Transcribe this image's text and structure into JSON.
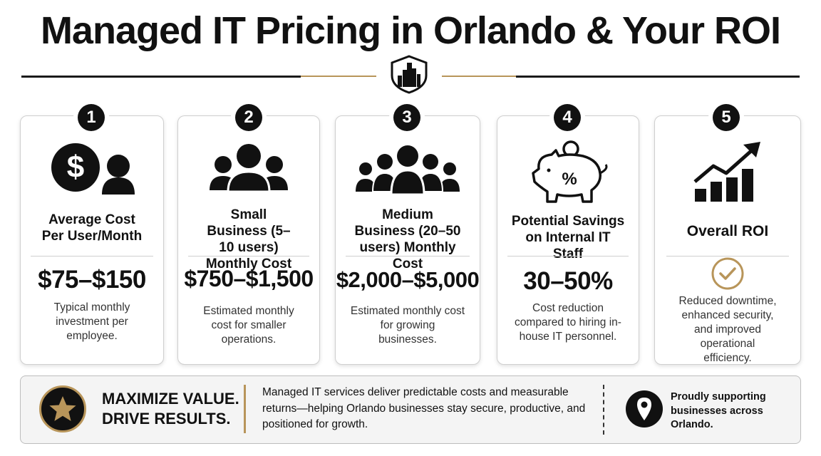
{
  "header": {
    "title": "Managed IT Pricing in Orlando & Your ROI"
  },
  "colors": {
    "accent_gold": "#b8955a",
    "dark": "#111111"
  },
  "cards": [
    {
      "number": "1",
      "icon": "dollar-user-icon",
      "heading": "Average Cost Per User/Month",
      "value": "$75–$150",
      "description": "Typical monthly investment per employee."
    },
    {
      "number": "2",
      "icon": "small-group-icon",
      "heading": "Small Business (5–10 users) Monthly Cost",
      "value": "$750–$1,500",
      "description": "Estimated monthly cost for smaller operations."
    },
    {
      "number": "3",
      "icon": "large-group-icon",
      "heading": "Medium Business (20–50 users) Monthly Cost",
      "value": "$2,000–$5,000",
      "description": "Estimated monthly cost for growing businesses."
    },
    {
      "number": "4",
      "icon": "piggy-bank-percent-icon",
      "heading": "Potential Savings on Internal IT Staff",
      "value": "30–50%",
      "description": "Cost reduction compared to hiring in-house IT personnel."
    },
    {
      "number": "5",
      "icon": "growth-chart-icon",
      "heading": "Overall ROI",
      "value_icon": "checkmark-circle-icon",
      "description": "Reduced downtime, enhanced security, and improved operational efficiency."
    }
  ],
  "footer": {
    "headline": "MAXIMIZE VALUE. DRIVE RESULTS.",
    "headline_line1": "MAXIMIZE VALUE.",
    "headline_line2": "DRIVE RESULTS.",
    "body": "Managed IT services deliver predictable costs and measurable returns—helping Orlando businesses stay secure, productive, and positioned for growth.",
    "support": "Proudly supporting businesses across Orlando."
  }
}
